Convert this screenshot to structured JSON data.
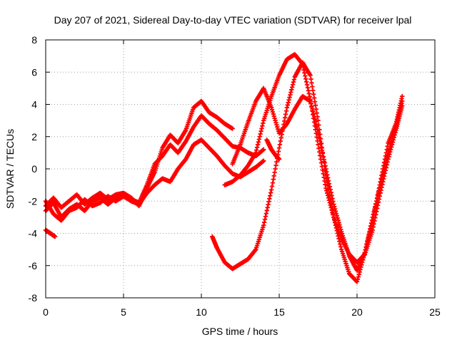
{
  "chart_data": {
    "type": "scatter",
    "title": "Day 207 of 2021, Sidereal Day-to-day VTEC variation (SDTVAR) for receiver lpal",
    "xlabel": "GPS time / hours",
    "ylabel": "SDTVAR / TECUs",
    "xlim": [
      0,
      25
    ],
    "ylim": [
      -8,
      8
    ],
    "xticks": [
      0,
      5,
      10,
      15,
      20,
      25
    ],
    "yticks": [
      -8,
      -6,
      -4,
      -2,
      0,
      2,
      4,
      6,
      8
    ],
    "grid": true,
    "marker": "+",
    "color": "#ff0000",
    "series": [
      {
        "x": [
          0.0,
          0.5,
          1.0,
          1.5,
          2.0,
          2.5,
          3.0,
          3.5,
          4.0,
          4.5,
          5.0,
          5.5,
          6.0,
          6.5,
          7.0,
          7.5,
          8.0,
          8.5,
          9.0,
          9.5,
          10.0,
          10.5,
          11.0,
          11.5,
          12.0
        ],
        "y": [
          -2.3,
          -1.8,
          -2.4,
          -2.0,
          -1.6,
          -2.2,
          -1.8,
          -1.5,
          -1.9,
          -1.6,
          -1.5,
          -1.8,
          -2.3,
          -1.2,
          -0.2,
          1.3,
          2.1,
          1.6,
          2.4,
          3.8,
          4.2,
          3.5,
          3.2,
          2.8,
          2.5
        ]
      },
      {
        "x": [
          0.0,
          0.5,
          1.0,
          1.5,
          2.0,
          2.5,
          3.0,
          3.5,
          4.0,
          4.5,
          5.0,
          5.5,
          6.0,
          6.5,
          7.0,
          7.5,
          8.0,
          8.5,
          9.0,
          9.5,
          10.0,
          10.5,
          11.0,
          11.5,
          12.0,
          12.5,
          13.0,
          13.5,
          14.0
        ],
        "y": [
          -2.6,
          -2.1,
          -3.0,
          -2.5,
          -2.2,
          -2.6,
          -2.0,
          -1.8,
          -2.2,
          -1.8,
          -1.6,
          -1.9,
          -2.1,
          -1.0,
          0.3,
          0.8,
          1.5,
          1.0,
          1.7,
          2.6,
          3.3,
          2.8,
          2.4,
          1.9,
          1.4,
          1.3,
          1.0,
          0.8,
          1.2
        ]
      },
      {
        "x": [
          0.0,
          0.5,
          1.0,
          1.5,
          2.0,
          2.5,
          3.0,
          3.5,
          4.0,
          4.5,
          5.0,
          5.5,
          6.0,
          6.5,
          7.0,
          7.5,
          8.0,
          8.5,
          9.0,
          9.5,
          10.0,
          10.5,
          11.0,
          11.5,
          12.0,
          12.5,
          13.0,
          13.5,
          14.0
        ],
        "y": [
          -2.0,
          -2.8,
          -3.2,
          -2.6,
          -2.4,
          -1.9,
          -2.3,
          -2.1,
          -1.7,
          -2.0,
          -1.7,
          -2.0,
          -2.2,
          -1.5,
          -1.0,
          -0.6,
          -0.8,
          0.0,
          0.6,
          1.5,
          1.8,
          1.3,
          0.8,
          0.2,
          -0.3,
          -0.5,
          -0.2,
          0.1,
          0.5
        ]
      },
      {
        "x": [
          0.0,
          0.3,
          0.6
        ],
        "y": [
          -3.8,
          -4.0,
          -4.2
        ]
      },
      {
        "x": [
          10.7,
          11.0,
          11.5,
          12.0,
          12.5,
          13.0,
          13.5,
          14.0,
          14.5,
          15.0,
          15.5,
          16.0,
          16.5,
          17.0,
          17.5,
          18.0,
          18.5,
          19.0,
          19.5,
          20.0,
          20.5,
          21.0,
          21.5,
          22.0,
          22.5,
          22.9
        ],
        "y": [
          -4.2,
          -4.9,
          -5.8,
          -6.2,
          -5.9,
          -5.6,
          -5.0,
          -3.5,
          -1.3,
          1.3,
          3.8,
          5.7,
          6.6,
          5.8,
          3.0,
          -0.4,
          -3.0,
          -5.0,
          -6.5,
          -7.0,
          -5.2,
          -3.2,
          -0.8,
          1.6,
          2.8,
          4.5
        ]
      },
      {
        "x": [
          11.5,
          12.0,
          12.5,
          13.0,
          13.5,
          14.0,
          14.5,
          15.0,
          15.5,
          16.0,
          16.5,
          17.0,
          17.5,
          18.0,
          18.5,
          19.0,
          19.5,
          20.0,
          20.5,
          21.0,
          21.5,
          22.0,
          22.5,
          22.9
        ],
        "y": [
          -1.0,
          -0.8,
          -0.4,
          0.2,
          1.0,
          3.0,
          4.5,
          5.8,
          6.8,
          7.1,
          6.5,
          4.3,
          1.5,
          -1.2,
          -3.0,
          -4.3,
          -5.3,
          -5.8,
          -5.3,
          -3.8,
          -1.5,
          0.6,
          2.4,
          3.9
        ]
      },
      {
        "x": [
          12.0,
          12.5,
          13.0,
          13.5,
          14.0,
          14.5,
          15.0,
          15.5,
          16.0,
          16.5,
          17.0,
          17.5,
          18.0,
          18.5,
          19.0,
          19.5,
          20.0,
          20.5,
          21.0,
          21.5,
          22.0,
          22.5,
          22.9
        ],
        "y": [
          0.3,
          1.5,
          2.9,
          4.2,
          5.0,
          3.8,
          2.2,
          2.8,
          3.7,
          4.5,
          4.2,
          2.3,
          0.0,
          -2.2,
          -3.9,
          -5.4,
          -6.3,
          -5.2,
          -3.0,
          -1.0,
          1.0,
          2.6,
          4.2
        ]
      },
      {
        "x": [
          14.2,
          14.5,
          14.8,
          15.0
        ],
        "y": [
          1.8,
          1.2,
          0.8,
          0.6
        ]
      }
    ]
  }
}
